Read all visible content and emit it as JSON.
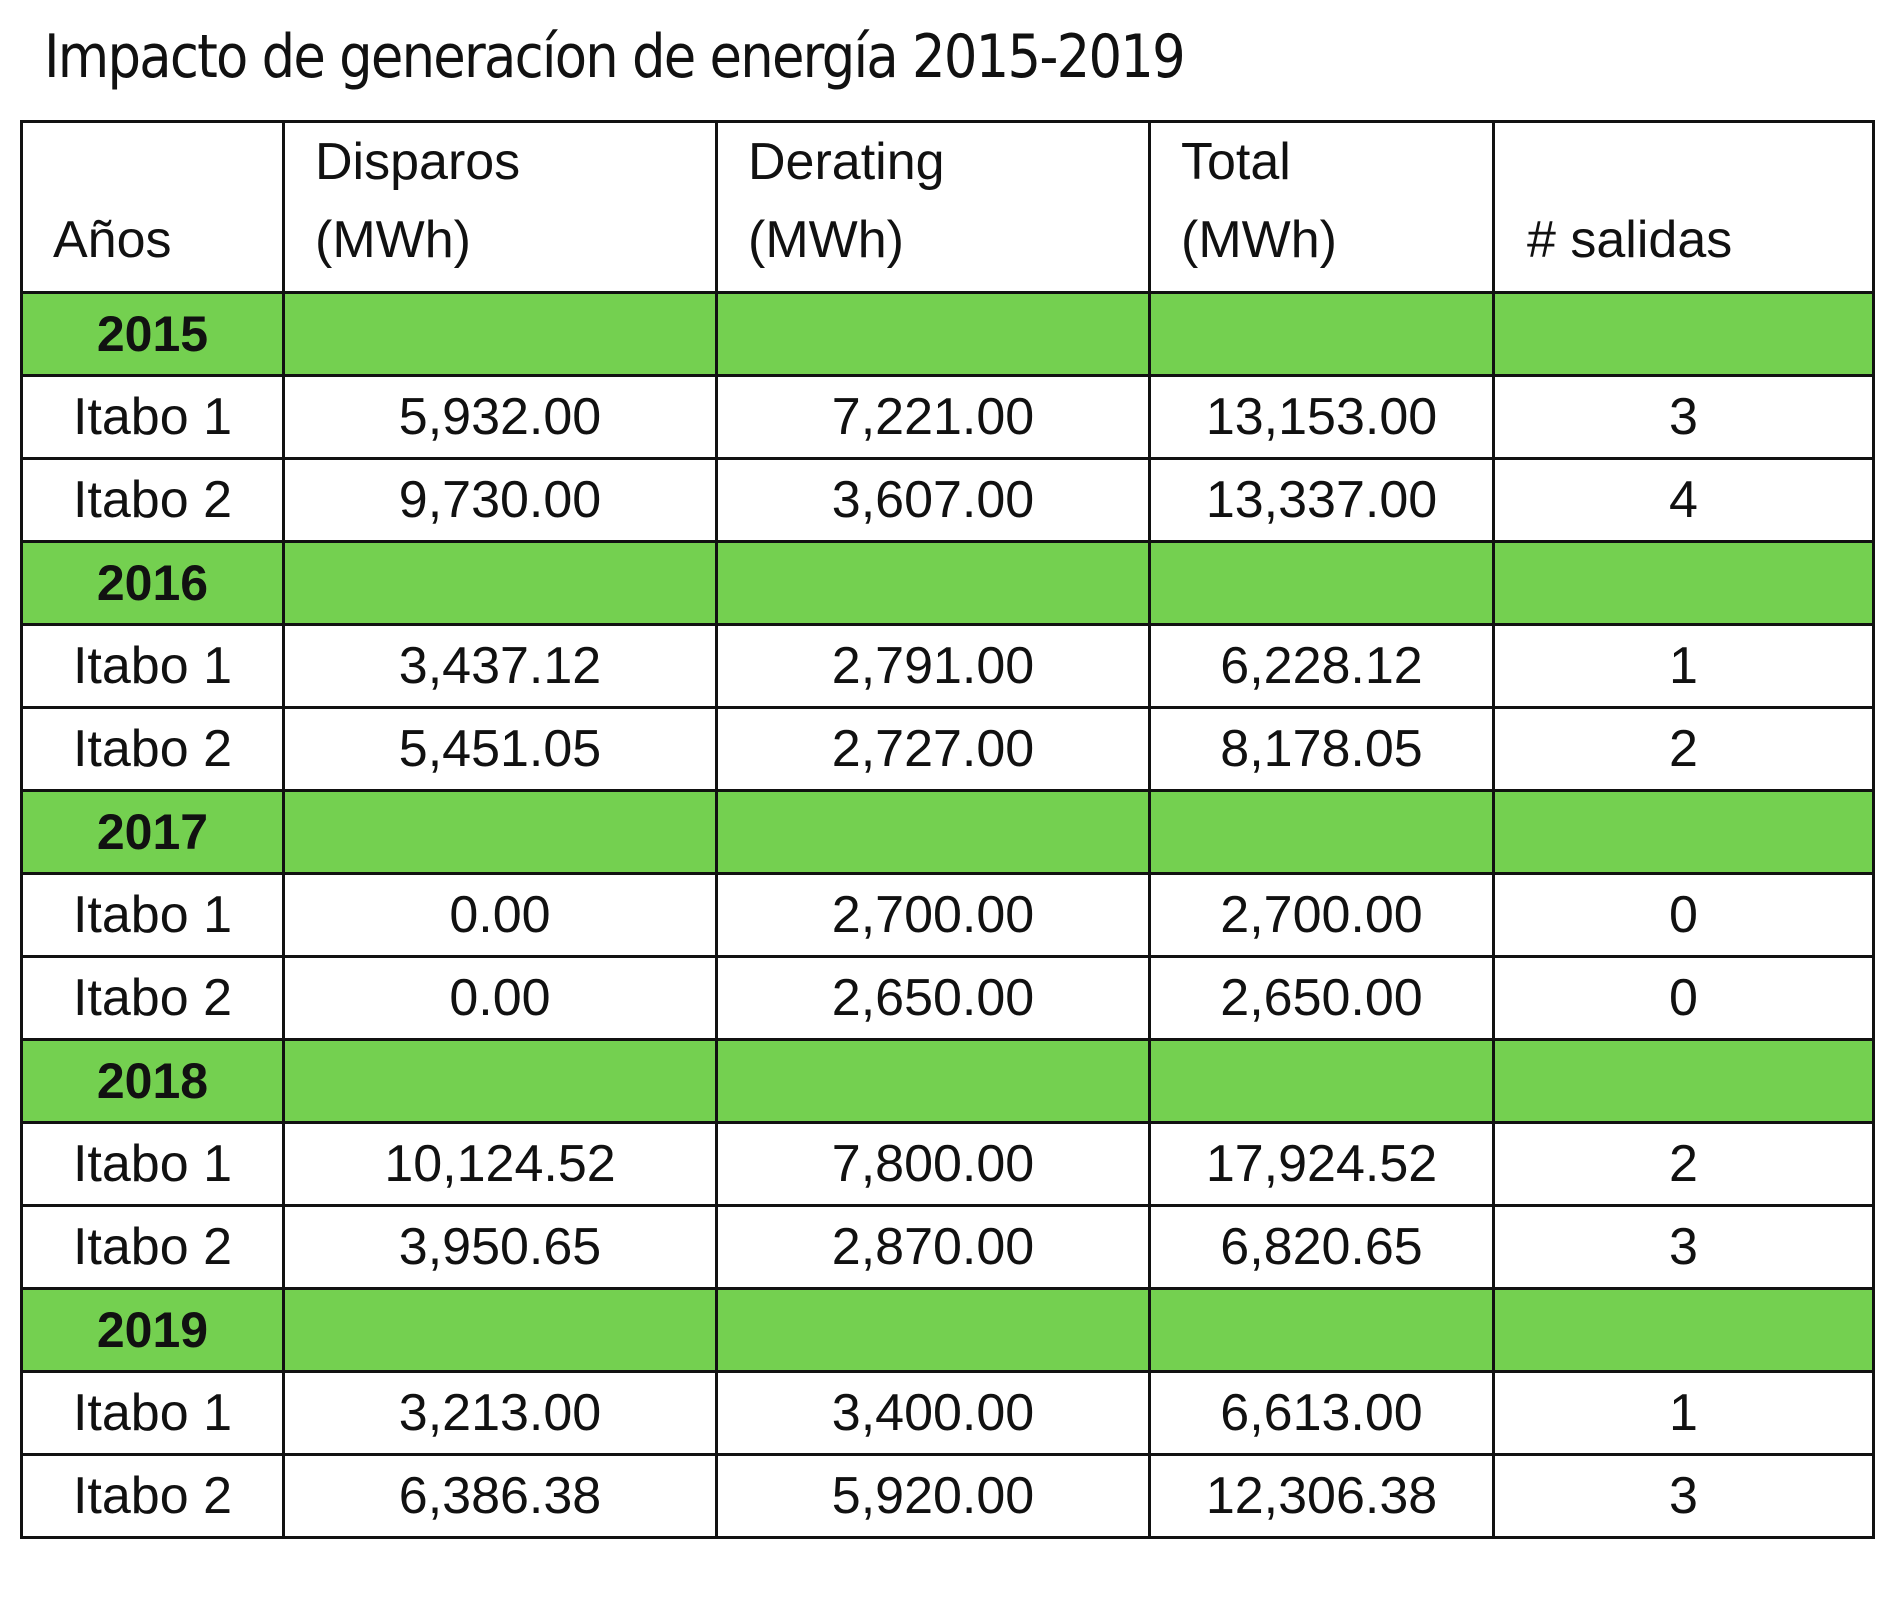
{
  "title": "Impacto de generacíon de energía 2015-2019",
  "headers": {
    "years": "Años",
    "disparos": [
      "Disparos",
      "(MWh)"
    ],
    "derating": [
      "Derating",
      "(MWh)"
    ],
    "total": [
      "Total",
      "(MWh)"
    ],
    "salidas": "# salidas"
  },
  "colors": {
    "year_row": "#74d050",
    "border": "#111111"
  },
  "groups": [
    {
      "year": "2015",
      "rows": [
        {
          "unit": "Itabo 1",
          "disparos": "5,932.00",
          "derating": "7,221.00",
          "total": "13,153.00",
          "salidas": "3"
        },
        {
          "unit": "Itabo 2",
          "disparos": "9,730.00",
          "derating": "3,607.00",
          "total": "13,337.00",
          "salidas": "4"
        }
      ]
    },
    {
      "year": "2016",
      "rows": [
        {
          "unit": "Itabo 1",
          "disparos": "3,437.12",
          "derating": "2,791.00",
          "total": "6,228.12",
          "salidas": "1"
        },
        {
          "unit": "Itabo 2",
          "disparos": "5,451.05",
          "derating": "2,727.00",
          "total": "8,178.05",
          "salidas": "2"
        }
      ]
    },
    {
      "year": "2017",
      "rows": [
        {
          "unit": "Itabo 1",
          "disparos": "0.00",
          "derating": "2,700.00",
          "total": "2,700.00",
          "salidas": "0"
        },
        {
          "unit": "Itabo 2",
          "disparos": "0.00",
          "derating": "2,650.00",
          "total": "2,650.00",
          "salidas": "0"
        }
      ]
    },
    {
      "year": "2018",
      "rows": [
        {
          "unit": "Itabo 1",
          "disparos": "10,124.52",
          "derating": "7,800.00",
          "total": "17,924.52",
          "salidas": "2"
        },
        {
          "unit": "Itabo 2",
          "disparos": "3,950.65",
          "derating": "2,870.00",
          "total": "6,820.65",
          "salidas": "3"
        }
      ]
    },
    {
      "year": "2019",
      "rows": [
        {
          "unit": "Itabo 1",
          "disparos": "3,213.00",
          "derating": "3,400.00",
          "total": "6,613.00",
          "salidas": "1"
        },
        {
          "unit": "Itabo 2",
          "disparos": "6,386.38",
          "derating": "5,920.00",
          "total": "12,306.38",
          "salidas": "3"
        }
      ]
    }
  ]
}
